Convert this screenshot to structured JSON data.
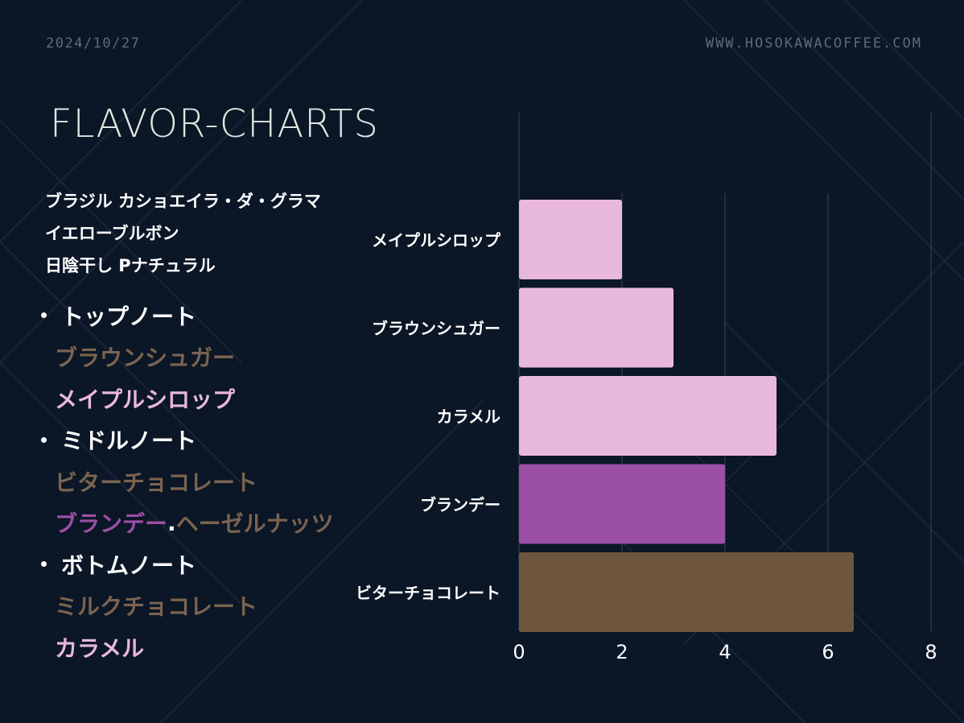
{
  "header": {
    "date": "2024/10/27",
    "site": "WWW.HOSOKAWACOFFEE.COM"
  },
  "title": "FLAVOR-CHARTS",
  "coffee": {
    "line1": "ブラジル カショエイラ・ダ・グラマ",
    "line2": "イエローブルボン",
    "line3": "日陰干し Pナチュラル"
  },
  "notes": {
    "top": {
      "heading": "トップノート",
      "items": [
        "ブラウンシュガー",
        "メイプルシロップ"
      ]
    },
    "middle": {
      "heading": "ミドルノート",
      "items": [
        "ビターチョコレート"
      ],
      "pair": [
        "ブランデー",
        ".",
        "ヘーゼルナッツ"
      ]
    },
    "bottom": {
      "heading": "ボトムノート",
      "items": [
        "ミルクチョコレート",
        "カラメル"
      ]
    }
  },
  "colors": {
    "background": "#0b1626",
    "pink": "#e8b8da",
    "purple": "#9b4fa6",
    "brown": "#6e563d",
    "grid": "#3a4654",
    "axis_text": "#ffffff"
  },
  "chart_data": {
    "type": "bar",
    "orientation": "horizontal",
    "categories": [
      "メイプルシロップ",
      "ブラウンシュガー",
      "カラメル",
      "ブランデー",
      "ビターチョコレート"
    ],
    "values": [
      2,
      3,
      5,
      4,
      6.5
    ],
    "bar_colors": [
      "#e8b8da",
      "#e8b8da",
      "#e8b8da",
      "#9b4fa6",
      "#6e563d"
    ],
    "xlim": [
      0,
      8
    ],
    "xticks": [
      "0",
      "2",
      "4",
      "6",
      "8"
    ],
    "grid": true,
    "legend": false
  }
}
